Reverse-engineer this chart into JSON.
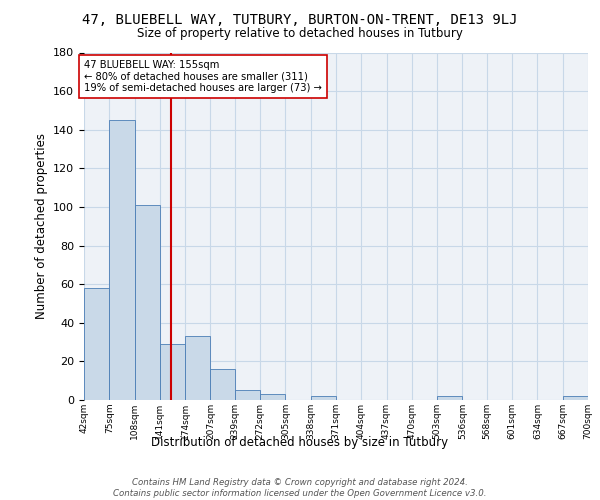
{
  "title": "47, BLUEBELL WAY, TUTBURY, BURTON-ON-TRENT, DE13 9LJ",
  "subtitle": "Size of property relative to detached houses in Tutbury",
  "xlabel": "Distribution of detached houses by size in Tutbury",
  "ylabel": "Number of detached properties",
  "bin_labels": [
    "42sqm",
    "75sqm",
    "108sqm",
    "141sqm",
    "174sqm",
    "207sqm",
    "239sqm",
    "272sqm",
    "305sqm",
    "338sqm",
    "371sqm",
    "404sqm",
    "437sqm",
    "470sqm",
    "503sqm",
    "536sqm",
    "568sqm",
    "601sqm",
    "634sqm",
    "667sqm",
    "700sqm"
  ],
  "bar_heights": [
    58,
    145,
    101,
    29,
    33,
    16,
    5,
    3,
    0,
    2,
    0,
    0,
    0,
    0,
    2,
    0,
    0,
    0,
    0,
    2,
    0
  ],
  "bar_color": "#c9d9e8",
  "bar_edge_color": "#4a7db5",
  "grid_color": "#c8d8e8",
  "background_color": "#eef2f7",
  "vline_x": 155,
  "vline_color": "#cc0000",
  "annotation_text": "47 BLUEBELL WAY: 155sqm\n← 80% of detached houses are smaller (311)\n19% of semi-detached houses are larger (73) →",
  "annotation_box_color": "#ffffff",
  "annotation_box_edge": "#cc0000",
  "ylim": [
    0,
    180
  ],
  "yticks": [
    0,
    20,
    40,
    60,
    80,
    100,
    120,
    140,
    160,
    180
  ],
  "footer_text": "Contains HM Land Registry data © Crown copyright and database right 2024.\nContains public sector information licensed under the Open Government Licence v3.0.",
  "bin_edges": [
    42,
    75,
    108,
    141,
    174,
    207,
    239,
    272,
    305,
    338,
    371,
    404,
    437,
    470,
    503,
    536,
    568,
    601,
    634,
    667,
    700
  ]
}
